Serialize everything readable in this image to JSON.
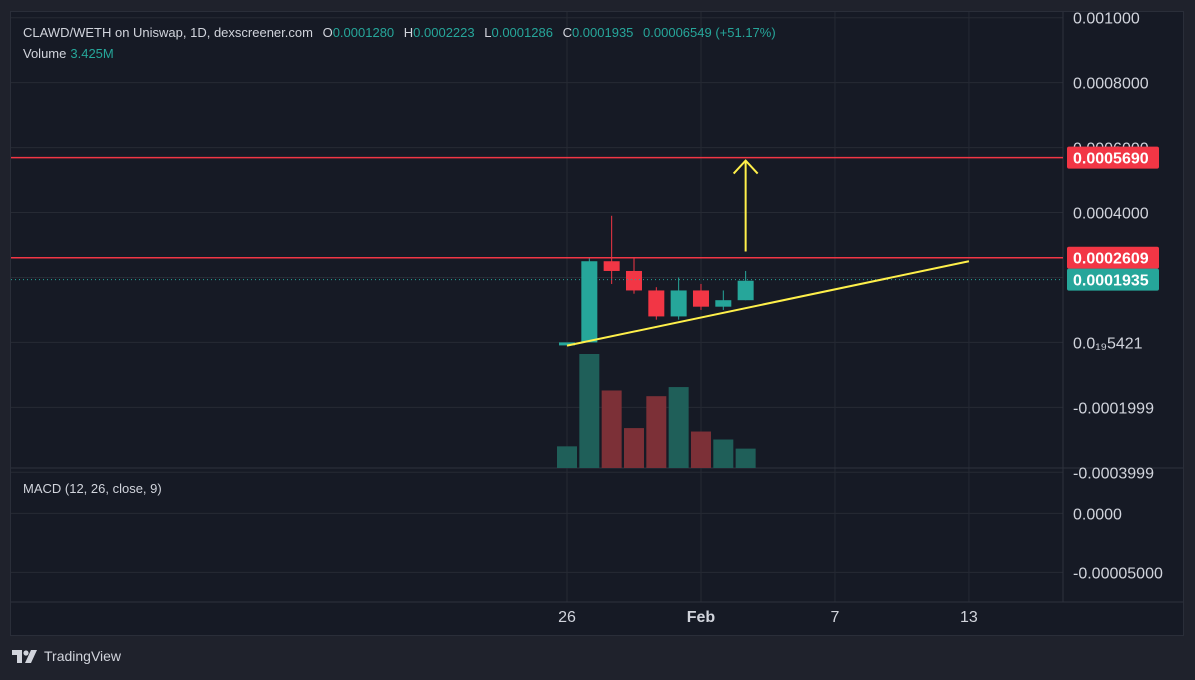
{
  "header": {
    "title": "CLAWD/WETH on Uniswap, 1D, dexscreener.com",
    "o_label": "O",
    "o_value": "0.0001280",
    "h_label": "H",
    "h_value": "0.0002223",
    "l_label": "L",
    "l_value": "0.0001286",
    "c_label": "C",
    "c_value": "0.0001935",
    "change": "0.00006549 (+51.17%)",
    "volume_label": "Volume",
    "volume_value": "3.425M"
  },
  "macd_label": "MACD (12, 26, close, 9)",
  "branding": "TradingView",
  "colors": {
    "up": "#26a69a",
    "down": "#f23645",
    "resistance": "#f23645",
    "trendline": "#fff04a",
    "arrow": "#fff04a",
    "grid": "#262a34"
  },
  "chart_data": {
    "type": "candlestick",
    "title": "CLAWD/WETH on Uniswap, 1D, dexscreener.com",
    "price_axis": {
      "range": [
        -0.00045,
        0.00105
      ],
      "tick_labels": [
        "0.001000",
        "0.0008000",
        "0.0006000",
        "0.0004000",
        "0.0002000",
        "0.0₁₉5421",
        "-0.0001999",
        "-0.0003999"
      ],
      "tick_values": [
        0.001,
        0.0008,
        0.0006,
        0.0004,
        0.0002,
        0.0,
        -0.0002,
        -0.0004
      ]
    },
    "x_axis": {
      "tick_labels": [
        "26",
        "Feb",
        "7",
        "13"
      ],
      "tick_dates": [
        "2026-01-26",
        "2026-02-01",
        "2026-02-07",
        "2026-02-13"
      ],
      "range": [
        "2026-01-07",
        "2026-02-17"
      ]
    },
    "candles": [
      {
        "date": "2026-01-26",
        "o": 0.0,
        "h": 0.0,
        "l": -0.0,
        "c": 0.0
      },
      {
        "date": "2026-01-27",
        "o": 0.0,
        "h": 0.00026,
        "l": 0.0,
        "c": 0.00025
      },
      {
        "date": "2026-01-28",
        "o": 0.00025,
        "h": 0.00039,
        "l": 0.00018,
        "c": 0.00022
      },
      {
        "date": "2026-01-29",
        "o": 0.00022,
        "h": 0.00026,
        "l": 0.00015,
        "c": 0.00016
      },
      {
        "date": "2026-01-30",
        "o": 0.00016,
        "h": 0.00017,
        "l": 7e-05,
        "c": 8e-05
      },
      {
        "date": "2026-01-31",
        "o": 8e-05,
        "h": 0.0002,
        "l": 7e-05,
        "c": 0.00016
      },
      {
        "date": "2026-02-01",
        "o": 0.00016,
        "h": 0.00018,
        "l": 0.0001,
        "c": 0.00011
      },
      {
        "date": "2026-02-02",
        "o": 0.00011,
        "h": 0.00016,
        "l": 0.0001,
        "c": 0.00013
      },
      {
        "date": "2026-02-03",
        "o": 0.00013,
        "h": 0.00022,
        "l": 0.00013,
        "c": 0.00019
      }
    ],
    "volume": [
      {
        "date": "2026-01-26",
        "value": 0.19,
        "dir": "up"
      },
      {
        "date": "2026-01-27",
        "value": 1.0,
        "dir": "up"
      },
      {
        "date": "2026-01-28",
        "value": 0.68,
        "dir": "down"
      },
      {
        "date": "2026-01-29",
        "value": 0.35,
        "dir": "down"
      },
      {
        "date": "2026-01-30",
        "value": 0.63,
        "dir": "down"
      },
      {
        "date": "2026-01-31",
        "value": 0.71,
        "dir": "up"
      },
      {
        "date": "2026-02-01",
        "value": 0.32,
        "dir": "down"
      },
      {
        "date": "2026-02-02",
        "value": 0.25,
        "dir": "up"
      },
      {
        "date": "2026-02-03",
        "value": 0.17,
        "dir": "up"
      }
    ],
    "horizontal_lines": [
      {
        "value": 0.000569,
        "label": "0.0005690"
      },
      {
        "value": 0.0002609,
        "label": "0.0002609"
      }
    ],
    "current_price": {
      "value": 0.0001935,
      "label": "0.0001935"
    },
    "trendline": {
      "from": {
        "date": "2026-01-26",
        "value": -1e-05
      },
      "to": {
        "date": "2026-02-13",
        "value": 0.00025
      }
    },
    "arrow": {
      "date": "2026-02-03",
      "from": 0.00028,
      "to": 0.00056
    },
    "macd": {
      "tick_labels": [
        "0.0000",
        "-0.00005000"
      ],
      "tick_values": [
        0.0,
        -5e-05
      ],
      "range": [
        -7e-05,
        3e-05
      ]
    }
  }
}
